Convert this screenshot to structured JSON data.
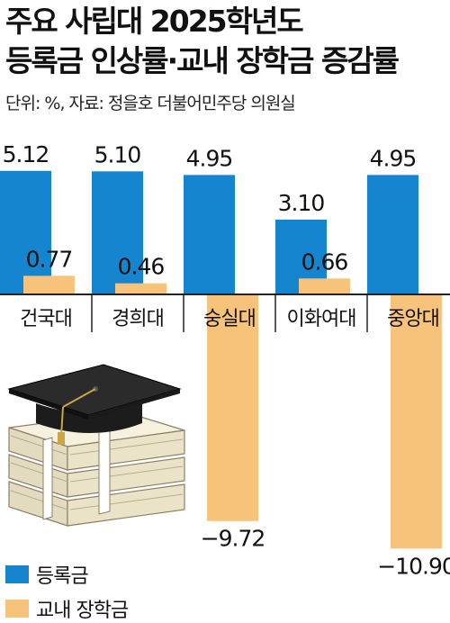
{
  "chart_data": {
    "type": "bar",
    "title": "주요 사립대 2025학년도",
    "subtitle": "등록금 인상률·교내 장학금 증감률",
    "note": "단위: %, 자료: 정을호 더불어민주당 의원실",
    "categories": [
      "건국대",
      "경희대",
      "숭실대",
      "이화여대",
      "중앙대"
    ],
    "series": [
      {
        "name": "등록금",
        "values": [
          5.12,
          5.1,
          4.95,
          3.1,
          4.95
        ],
        "labels": [
          "5.12",
          "5.10",
          "4.95",
          "3.10",
          "4.95"
        ]
      },
      {
        "name": "교내 장학금",
        "values": [
          0.77,
          0.46,
          -9.72,
          0.66,
          -10.9
        ],
        "labels": [
          "0.77",
          "0.46",
          "−9.72",
          "0.66",
          "−10.90"
        ]
      }
    ],
    "ylim": [
      -10.9,
      5.12
    ],
    "grid": false,
    "legend": "bottom-left"
  },
  "colors": {
    "tuition": "#1585d0",
    "scholarship": "#f7c27a",
    "axis": "#222222",
    "text": "#111111"
  },
  "icons": {
    "illustration": "graduation-cap-on-money-stack"
  }
}
